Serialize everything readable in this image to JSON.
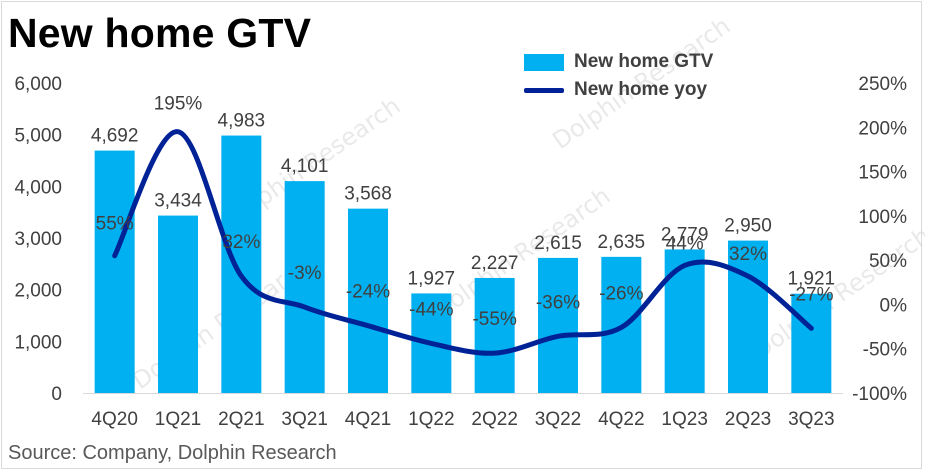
{
  "title": "New home GTV",
  "source": "Source: Company, Dolphin Research",
  "chart_data": {
    "type": "bar",
    "categories": [
      "4Q20",
      "1Q21",
      "2Q21",
      "3Q21",
      "4Q21",
      "1Q22",
      "2Q22",
      "3Q22",
      "4Q22",
      "1Q23",
      "2Q23",
      "3Q23"
    ],
    "series": [
      {
        "name": "New home GTV",
        "type": "bar",
        "axis": "left",
        "values": [
          4692,
          3434,
          4983,
          4101,
          3568,
          1927,
          2227,
          2615,
          2635,
          2779,
          2950,
          1921
        ],
        "labels": [
          "4,692",
          "3,434",
          "4,983",
          "4,101",
          "3,568",
          "1,927",
          "2,227",
          "2,615",
          "2,635",
          "2,779",
          "2,950",
          "1,921"
        ],
        "color": "#00b0f0"
      },
      {
        "name": "New home yoy",
        "type": "line",
        "axis": "right",
        "values": [
          55,
          195,
          32,
          -3,
          -24,
          -44,
          -55,
          -36,
          -26,
          44,
          32,
          -27
        ],
        "labels": [
          "55%",
          "195%",
          "32%",
          "-3%",
          "-24%",
          "-44%",
          "-55%",
          "-36%",
          "-26%",
          "44%",
          "32%",
          "-27%"
        ],
        "color": "#002297"
      }
    ],
    "y_left": {
      "ylim": [
        0,
        6000
      ],
      "ticks": [
        0,
        1000,
        2000,
        3000,
        4000,
        5000,
        6000
      ],
      "tick_labels": [
        "0",
        "1,000",
        "2,000",
        "3,000",
        "4,000",
        "5,000",
        "6,000"
      ]
    },
    "y_right": {
      "ylim": [
        -100,
        250
      ],
      "ticks": [
        -100,
        -50,
        0,
        50,
        100,
        150,
        200,
        250
      ],
      "tick_labels": [
        "-100%",
        "-50%",
        "0%",
        "50%",
        "100%",
        "150%",
        "200%",
        "250%"
      ]
    },
    "legend_position": "top-right",
    "grid": false
  },
  "watermark": "Dolphin Research"
}
